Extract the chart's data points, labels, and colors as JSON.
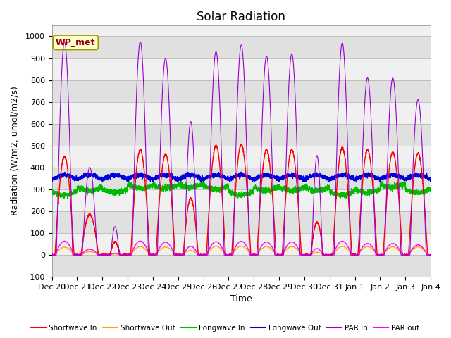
{
  "title": "Solar Radiation",
  "xlabel": "Time",
  "ylabel": "Radiation (W/m2, umol/m2/s)",
  "ylim": [
    -100,
    1050
  ],
  "yticks": [
    -100,
    0,
    100,
    200,
    300,
    400,
    500,
    600,
    700,
    800,
    900,
    1000
  ],
  "x_tick_labels": [
    "Dec 20",
    "Dec 21",
    "Dec 22",
    "Dec 23",
    "Dec 24",
    "Dec 25",
    "Dec 26",
    "Dec 27",
    "Dec 28",
    "Dec 29",
    "Dec 30",
    "Dec 31",
    "Jan 1",
    "Jan 2",
    "Jan 3",
    "Jan 4"
  ],
  "legend_entries": [
    "Shortwave In",
    "Shortwave Out",
    "Longwave In",
    "Longwave Out",
    "PAR in",
    "PAR out"
  ],
  "colors": {
    "shortwave_in": "#ff0000",
    "shortwave_out": "#ffa500",
    "longwave_in": "#00bb00",
    "longwave_out": "#0000dd",
    "par_in": "#9900cc",
    "par_out": "#ff00ff"
  },
  "annotation": "WP_met",
  "annotation_color": "#990000",
  "annotation_bg": "#ffffcc",
  "annotation_border": "#999900",
  "bg_light": "#f0f0f0",
  "bg_dark": "#e0e0e0",
  "n_days": 15,
  "pts_per_day": 288,
  "longwave_in_base": 315,
  "longwave_out_base": 345,
  "title_fontsize": 12,
  "axis_fontsize": 9,
  "tick_fontsize": 8
}
